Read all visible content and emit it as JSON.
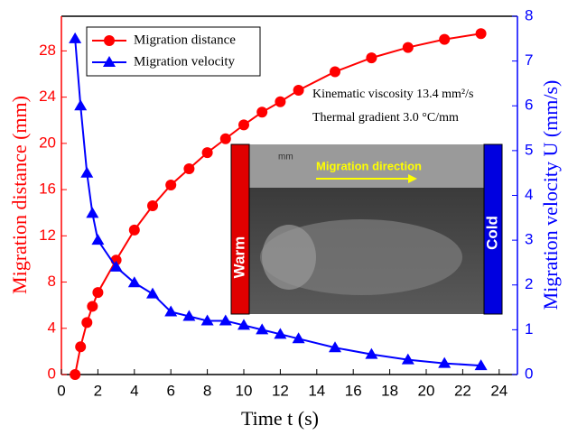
{
  "chart_data": {
    "type": "line",
    "xlabel": "Time t (s)",
    "ylabel": "Migration distance (mm)",
    "y2label": "Migration velocity U (mm/s)",
    "x": [
      0.75,
      1.05,
      1.4,
      1.7,
      2,
      3,
      4,
      5,
      6,
      7,
      8,
      9,
      10,
      11,
      12,
      13,
      15,
      17,
      19,
      21,
      23
    ],
    "series": [
      {
        "name": "Migration distance",
        "color": "#ff0000",
        "marker": "circle",
        "values": [
          0,
          2.4,
          4.5,
          5.9,
          7.1,
          9.9,
          12.5,
          14.6,
          16.4,
          17.8,
          19.2,
          20.4,
          21.6,
          22.7,
          23.6,
          24.6,
          26.2,
          27.4,
          28.3,
          29.0,
          29.5
        ]
      },
      {
        "name": "Migration velocity",
        "color": "#0000ff",
        "marker": "triangle",
        "axis": "y2",
        "values": [
          7.5,
          6.0,
          4.5,
          3.6,
          3.0,
          2.4,
          2.05,
          1.8,
          1.4,
          1.3,
          1.2,
          1.2,
          1.1,
          1.0,
          0.9,
          0.8,
          0.6,
          0.45,
          0.33,
          0.25,
          0.2
        ]
      }
    ],
    "xlim": [
      0,
      25
    ],
    "xticks": [
      0,
      2,
      4,
      6,
      8,
      10,
      12,
      14,
      16,
      18,
      20,
      22,
      24
    ],
    "ylim": [
      0,
      31
    ],
    "yticks": [
      0,
      4,
      8,
      12,
      16,
      20,
      24,
      28
    ],
    "y2lim": [
      0,
      8
    ],
    "y2ticks": [
      0,
      1,
      2,
      3,
      4,
      5,
      6,
      7,
      8
    ],
    "legend": "upper left",
    "annotations": [
      "Kinematic viscosity 13.4 mm²/s",
      "Thermal gradient 3.0 °C/mm",
      "Warm",
      "Cold",
      "Migration direction",
      "mm"
    ]
  }
}
